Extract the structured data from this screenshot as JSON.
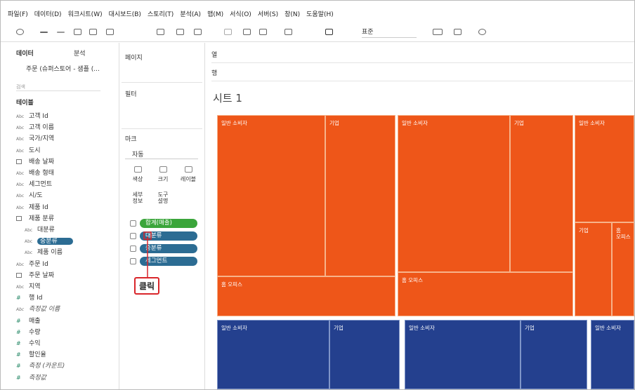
{
  "menu": [
    "파일(F)",
    "데이터(D)",
    "워크시트(W)",
    "대시보드(B)",
    "스토리(T)",
    "분석(A)",
    "맵(M)",
    "서식(O)",
    "서버(S)",
    "창(N)",
    "도움말(H)"
  ],
  "toolbar": {
    "format": "표준"
  },
  "data_pane": {
    "tabs": [
      "데이터",
      "분석"
    ],
    "source": "주문 (슈퍼스토어 - 샘플 (...",
    "search": "검색",
    "section": "테이블",
    "fields": [
      {
        "type": "Abc",
        "name": "고객 Id"
      },
      {
        "type": "Abc",
        "name": "고객 이름"
      },
      {
        "type": "Abc",
        "name": "국가/지역"
      },
      {
        "type": "Abc",
        "name": "도시"
      },
      {
        "name": "배송 날짜"
      },
      {
        "type": "Abc",
        "name": "배송 형태"
      },
      {
        "type": "Abc",
        "name": "세그먼트"
      },
      {
        "type": "Abc",
        "name": "시/도"
      },
      {
        "type": "Abc",
        "name": "제품 Id"
      },
      {
        "name": "제품 분류"
      },
      {
        "type": "Abc",
        "name": "대분류"
      },
      {
        "type": "Abc",
        "name": "중분류"
      },
      {
        "type": "Abc",
        "name": "제품 이름"
      },
      {
        "type": "Abc",
        "name": "주문 Id"
      },
      {
        "name": "주문 날짜"
      },
      {
        "type": "Abc",
        "name": "지역"
      },
      {
        "type": "#",
        "name": "행 Id"
      },
      {
        "type": "Abc",
        "name": "측정값 이름"
      },
      {
        "type": "#",
        "name": "매출"
      },
      {
        "type": "#",
        "name": "수량"
      },
      {
        "type": "#",
        "name": "수익"
      },
      {
        "type": "#",
        "name": "할인율"
      },
      {
        "type": "#",
        "name": "측정 (카운트)"
      },
      {
        "type": "#",
        "name": "측정값"
      }
    ]
  },
  "cards": {
    "pages": "페이지",
    "filters": "필터",
    "marks": "마크",
    "mark_type": "자동",
    "buttons": [
      "색상",
      "크기",
      "레이블",
      "세부\n정보",
      "도구\n설명"
    ],
    "pills": [
      "합계(매출)",
      "대분류",
      "중분류",
      "세그먼트"
    ]
  },
  "annotation": "클릭",
  "view": {
    "columns_shelf": "열",
    "rows_shelf": "행",
    "sheet_title": "시트 1",
    "treemap_labels": [
      "일반 소비자",
      "기업",
      "홈 오피스",
      "일반 소비자",
      "기업",
      "홈 오피스",
      "일반 소비자",
      "기업",
      "홈\n오피스",
      "일반 소비자",
      "기업",
      "일반 소비자",
      "기업",
      "일반 소비자"
    ]
  }
}
